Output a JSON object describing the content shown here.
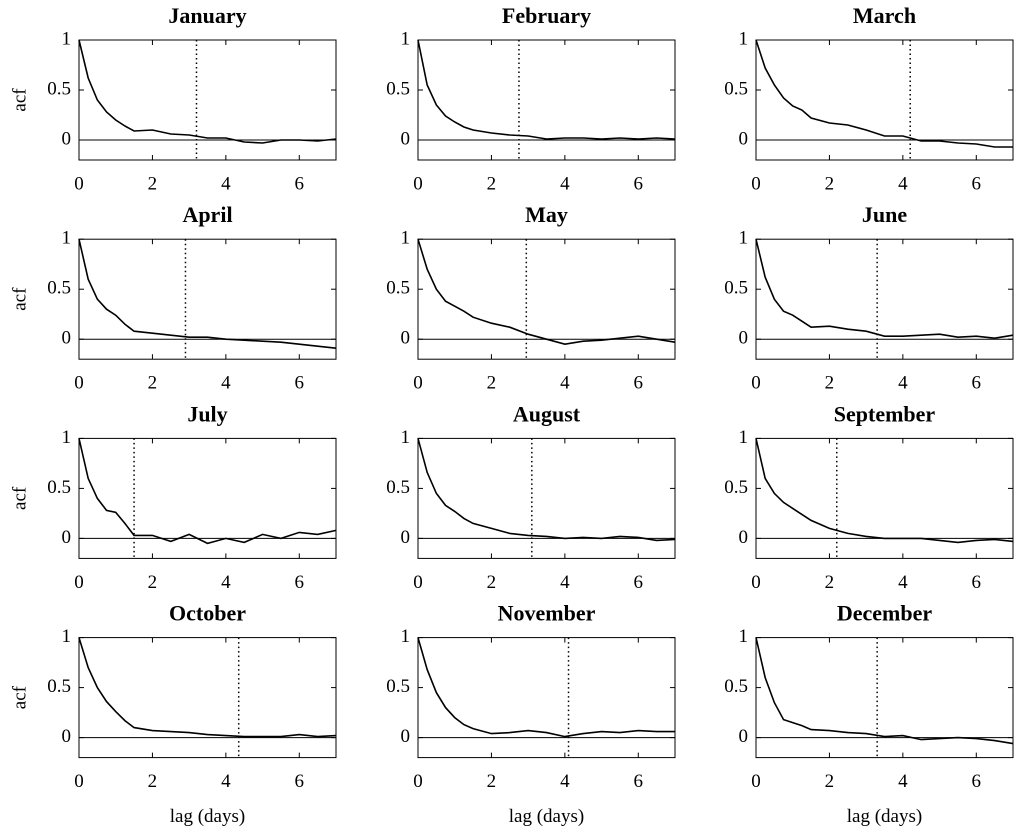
{
  "chart_data": [
    {
      "type": "line",
      "title": "January",
      "ylabel": "acf",
      "x": [
        0,
        0.25,
        0.5,
        0.75,
        1,
        1.25,
        1.5,
        2,
        2.5,
        3,
        3.5,
        4,
        4.5,
        5,
        5.5,
        6,
        6.5,
        7
      ],
      "values": [
        1,
        0.62,
        0.4,
        0.28,
        0.2,
        0.14,
        0.09,
        0.1,
        0.06,
        0.05,
        0.02,
        0.02,
        -0.02,
        -0.03,
        0,
        0,
        -0.01,
        0.01
      ],
      "vline": 3.2,
      "hline": 0,
      "xlim": [
        0,
        7
      ],
      "ylim": [
        -0.2,
        1
      ],
      "xticks": [
        0,
        2,
        4,
        6
      ],
      "yticks": [
        0,
        0.5,
        1
      ],
      "color": "#000000"
    },
    {
      "type": "line",
      "title": "February",
      "x": [
        0,
        0.25,
        0.5,
        0.75,
        1,
        1.25,
        1.5,
        2,
        2.5,
        3,
        3.5,
        4,
        4.5,
        5,
        5.5,
        6,
        6.5,
        7
      ],
      "values": [
        1,
        0.55,
        0.35,
        0.24,
        0.18,
        0.13,
        0.1,
        0.07,
        0.05,
        0.04,
        0.01,
        0.02,
        0.02,
        0.01,
        0.02,
        0.01,
        0.02,
        0.01
      ],
      "vline": 2.75,
      "hline": 0,
      "xlim": [
        0,
        7
      ],
      "ylim": [
        -0.2,
        1
      ],
      "xticks": [
        0,
        2,
        4,
        6
      ],
      "yticks": [
        0,
        0.5,
        1
      ],
      "color": "#000000"
    },
    {
      "type": "line",
      "title": "March",
      "x": [
        0,
        0.25,
        0.5,
        0.75,
        1,
        1.25,
        1.5,
        2,
        2.5,
        3,
        3.5,
        4,
        4.5,
        5,
        5.5,
        6,
        6.5,
        7
      ],
      "values": [
        1,
        0.72,
        0.55,
        0.42,
        0.34,
        0.3,
        0.22,
        0.17,
        0.15,
        0.1,
        0.04,
        0.04,
        -0.01,
        -0.01,
        -0.03,
        -0.04,
        -0.07,
        -0.07
      ],
      "vline": 4.2,
      "hline": 0,
      "xlim": [
        0,
        7
      ],
      "ylim": [
        -0.2,
        1
      ],
      "xticks": [
        0,
        2,
        4,
        6
      ],
      "yticks": [
        0,
        0.5,
        1
      ],
      "color": "#000000"
    },
    {
      "type": "line",
      "title": "April",
      "ylabel": "acf",
      "x": [
        0,
        0.25,
        0.5,
        0.75,
        1,
        1.25,
        1.5,
        2,
        2.5,
        3,
        3.5,
        4,
        4.5,
        5,
        5.5,
        6,
        6.5,
        7
      ],
      "values": [
        1,
        0.6,
        0.4,
        0.3,
        0.24,
        0.15,
        0.08,
        0.06,
        0.04,
        0.02,
        0.02,
        0,
        -0.01,
        -0.02,
        -0.03,
        -0.05,
        -0.07,
        -0.09
      ],
      "vline": 2.9,
      "hline": 0,
      "xlim": [
        0,
        7
      ],
      "ylim": [
        -0.2,
        1
      ],
      "xticks": [
        0,
        2,
        4,
        6
      ],
      "yticks": [
        0,
        0.5,
        1
      ],
      "color": "#000000"
    },
    {
      "type": "line",
      "title": "May",
      "x": [
        0,
        0.25,
        0.5,
        0.75,
        1,
        1.25,
        1.5,
        2,
        2.5,
        3,
        3.5,
        4,
        4.5,
        5,
        5.5,
        6,
        6.5,
        7
      ],
      "values": [
        1,
        0.7,
        0.5,
        0.38,
        0.33,
        0.28,
        0.22,
        0.16,
        0.12,
        0.05,
        0,
        -0.05,
        -0.02,
        -0.01,
        0.01,
        0.03,
        0,
        -0.03
      ],
      "vline": 2.95,
      "hline": 0,
      "xlim": [
        0,
        7
      ],
      "ylim": [
        -0.2,
        1
      ],
      "xticks": [
        0,
        2,
        4,
        6
      ],
      "yticks": [
        0,
        0.5,
        1
      ],
      "color": "#000000"
    },
    {
      "type": "line",
      "title": "June",
      "x": [
        0,
        0.25,
        0.5,
        0.75,
        1,
        1.25,
        1.5,
        2,
        2.5,
        3,
        3.5,
        4,
        4.5,
        5,
        5.5,
        6,
        6.5,
        7
      ],
      "values": [
        1,
        0.62,
        0.4,
        0.28,
        0.24,
        0.18,
        0.12,
        0.13,
        0.1,
        0.08,
        0.03,
        0.03,
        0.04,
        0.05,
        0.02,
        0.03,
        0.01,
        0.04
      ],
      "vline": 3.3,
      "hline": 0,
      "xlim": [
        0,
        7
      ],
      "ylim": [
        -0.2,
        1
      ],
      "xticks": [
        0,
        2,
        4,
        6
      ],
      "yticks": [
        0,
        0.5,
        1
      ],
      "color": "#000000"
    },
    {
      "type": "line",
      "title": "July",
      "ylabel": "acf",
      "x": [
        0,
        0.25,
        0.5,
        0.75,
        1,
        1.25,
        1.5,
        2,
        2.5,
        3,
        3.5,
        4,
        4.5,
        5,
        5.5,
        6,
        6.5,
        7
      ],
      "values": [
        1,
        0.6,
        0.4,
        0.28,
        0.26,
        0.15,
        0.03,
        0.03,
        -0.03,
        0.04,
        -0.05,
        0,
        -0.04,
        0.04,
        0,
        0.06,
        0.04,
        0.08
      ],
      "vline": 1.5,
      "hline": 0,
      "xlim": [
        0,
        7
      ],
      "ylim": [
        -0.2,
        1
      ],
      "xticks": [
        0,
        2,
        4,
        6
      ],
      "yticks": [
        0,
        0.5,
        1
      ],
      "color": "#000000"
    },
    {
      "type": "line",
      "title": "August",
      "x": [
        0,
        0.25,
        0.5,
        0.75,
        1,
        1.25,
        1.5,
        2,
        2.5,
        3,
        3.5,
        4,
        4.5,
        5,
        5.5,
        6,
        6.5,
        7
      ],
      "values": [
        1,
        0.66,
        0.45,
        0.33,
        0.27,
        0.2,
        0.15,
        0.1,
        0.05,
        0.03,
        0.02,
        0,
        0.01,
        0,
        0.02,
        0.01,
        -0.02,
        -0.01
      ],
      "vline": 3.1,
      "hline": 0,
      "xlim": [
        0,
        7
      ],
      "ylim": [
        -0.2,
        1
      ],
      "xticks": [
        0,
        2,
        4,
        6
      ],
      "yticks": [
        0,
        0.5,
        1
      ],
      "color": "#000000"
    },
    {
      "type": "line",
      "title": "September",
      "x": [
        0,
        0.25,
        0.5,
        0.75,
        1,
        1.25,
        1.5,
        2,
        2.5,
        3,
        3.5,
        4,
        4.5,
        5,
        5.5,
        6,
        6.5,
        7
      ],
      "values": [
        1,
        0.6,
        0.45,
        0.36,
        0.3,
        0.24,
        0.18,
        0.1,
        0.05,
        0.02,
        0,
        0,
        0,
        -0.02,
        -0.04,
        -0.02,
        -0.01,
        -0.03
      ],
      "vline": 2.2,
      "hline": 0,
      "xlim": [
        0,
        7
      ],
      "ylim": [
        -0.2,
        1
      ],
      "xticks": [
        0,
        2,
        4,
        6
      ],
      "yticks": [
        0,
        0.5,
        1
      ],
      "color": "#000000"
    },
    {
      "type": "line",
      "title": "October",
      "ylabel": "acf",
      "xlabel": "lag (days)",
      "x": [
        0,
        0.25,
        0.5,
        0.75,
        1,
        1.25,
        1.5,
        2,
        2.5,
        3,
        3.5,
        4,
        4.5,
        5,
        5.5,
        6,
        6.5,
        7
      ],
      "values": [
        1,
        0.7,
        0.5,
        0.36,
        0.26,
        0.17,
        0.1,
        0.07,
        0.06,
        0.05,
        0.03,
        0.02,
        0.01,
        0.01,
        0.01,
        0.03,
        0.01,
        0.02
      ],
      "vline": 4.35,
      "hline": 0,
      "xlim": [
        0,
        7
      ],
      "ylim": [
        -0.2,
        1
      ],
      "xticks": [
        0,
        2,
        4,
        6
      ],
      "yticks": [
        0,
        0.5,
        1
      ],
      "color": "#000000"
    },
    {
      "type": "line",
      "title": "November",
      "xlabel": "lag (days)",
      "x": [
        0,
        0.25,
        0.5,
        0.75,
        1,
        1.25,
        1.5,
        2,
        2.5,
        3,
        3.5,
        4,
        4.5,
        5,
        5.5,
        6,
        6.5,
        7
      ],
      "values": [
        1,
        0.68,
        0.45,
        0.3,
        0.2,
        0.13,
        0.09,
        0.04,
        0.05,
        0.07,
        0.05,
        0.01,
        0.04,
        0.06,
        0.05,
        0.07,
        0.06,
        0.06
      ],
      "vline": 4.1,
      "hline": 0,
      "xlim": [
        0,
        7
      ],
      "ylim": [
        -0.2,
        1
      ],
      "xticks": [
        0,
        2,
        4,
        6
      ],
      "yticks": [
        0,
        0.5,
        1
      ],
      "color": "#000000"
    },
    {
      "type": "line",
      "title": "December",
      "xlabel": "lag (days)",
      "x": [
        0,
        0.25,
        0.5,
        0.75,
        1,
        1.25,
        1.5,
        2,
        2.5,
        3,
        3.5,
        4,
        4.5,
        5,
        5.5,
        6,
        6.5,
        7
      ],
      "values": [
        1,
        0.6,
        0.35,
        0.18,
        0.15,
        0.12,
        0.08,
        0.07,
        0.05,
        0.04,
        0.01,
        0.02,
        -0.02,
        -0.01,
        0,
        -0.01,
        -0.03,
        -0.06
      ],
      "vline": 3.3,
      "hline": 0,
      "xlim": [
        0,
        7
      ],
      "ylim": [
        -0.2,
        1
      ],
      "xticks": [
        0,
        2,
        4,
        6
      ],
      "yticks": [
        0,
        0.5,
        1
      ],
      "color": "#000000"
    }
  ]
}
